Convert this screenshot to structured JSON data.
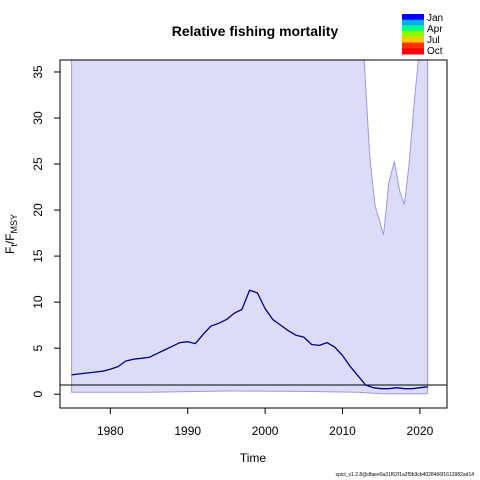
{
  "chart_data": {
    "type": "line",
    "title": "Relative fishing mortality",
    "xlabel": "Time",
    "ylabel": "F_t/F_MSY",
    "xlim": [
      1973.5,
      2023.5
    ],
    "ylim": [
      -1.5,
      36.3
    ],
    "x_ticks": [
      "1980",
      "1990",
      "2000",
      "2010",
      "2020"
    ],
    "y_ticks": [
      "0",
      "5",
      "10",
      "15",
      "20",
      "25",
      "30",
      "35"
    ],
    "reference_line": 1,
    "colors": {
      "line": "#00008b",
      "ci_fill": "#dcdcf8",
      "ci_border": "#9a9ad8",
      "reference": "#000000"
    },
    "legend": {
      "placement": "top-right",
      "labels": [
        "Jan",
        "Apr",
        "Jul",
        "Oct"
      ],
      "gradient": [
        "#0000ff",
        "#00aaff",
        "#00ff88",
        "#88ff00",
        "#ffcc00",
        "#ff3300",
        "#ff0000"
      ]
    },
    "series": [
      {
        "x": [
          1975,
          1976,
          1977,
          1978,
          1979,
          1980,
          1981,
          1982,
          1983,
          1984,
          1985,
          1986,
          1987,
          1988,
          1989,
          1990,
          1991,
          1992,
          1993,
          1994,
          1995,
          1996,
          1997,
          1998,
          1999,
          2000,
          2001,
          2002,
          2003,
          2004,
          2005,
          2006,
          2007,
          2008,
          2009,
          2010,
          2011,
          2012,
          2013,
          2014,
          2015,
          2016,
          2017,
          2018,
          2019,
          2020,
          2021
        ],
        "y": [
          2.1,
          2.2,
          2.3,
          2.4,
          2.5,
          2.7,
          3.0,
          3.6,
          3.8,
          3.9,
          4.0,
          4.4,
          4.8,
          5.2,
          5.6,
          5.7,
          5.5,
          6.5,
          7.4,
          7.7,
          8.1,
          8.8,
          9.2,
          11.3,
          11.0,
          9.3,
          8.1,
          7.5,
          6.9,
          6.4,
          6.2,
          5.4,
          5.3,
          5.6,
          5.1,
          4.2,
          3.0,
          2.0,
          1.0,
          0.7,
          0.6,
          0.6,
          0.7,
          0.6,
          0.6,
          0.7,
          0.8
        ]
      }
    ],
    "ci_upper": {
      "x": [
        2012.8,
        2013.5,
        2014.2,
        2014.8,
        2015.3,
        2016.0,
        2016.7,
        2017.4,
        2018.0,
        2018.6,
        2019.3,
        2019.8,
        2020.3
      ],
      "y": [
        36.3,
        26.0,
        20.5,
        18.8,
        17.3,
        23.0,
        25.3,
        22.0,
        20.6,
        25.0,
        32.0,
        36.3,
        36.3
      ]
    },
    "ci_lower": {
      "x": [
        1975,
        1985,
        1995,
        2005,
        2012,
        2015,
        2019,
        2021
      ],
      "y": [
        0.2,
        0.2,
        0.35,
        0.3,
        0.2,
        0.05,
        0.05,
        0.05
      ]
    },
    "ci_start": 1975,
    "ci_end": 2021,
    "footer": "spict_v1.2.8@dfaee0a31f62f1a2f9b3cb4028466f1613982ad14"
  }
}
